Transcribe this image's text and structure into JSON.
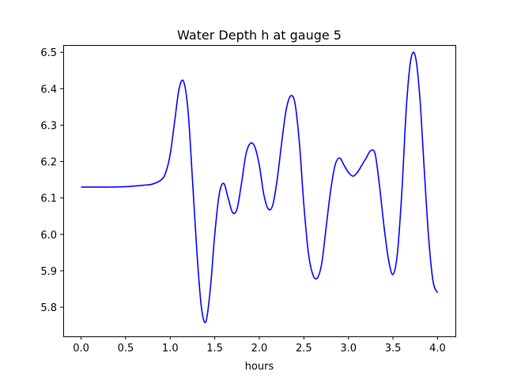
{
  "chart_data": {
    "type": "line",
    "title": "Water Depth h at gauge 5",
    "xlabel": "hours",
    "ylabel": "",
    "xlim": [
      -0.2,
      4.2
    ],
    "ylim": [
      5.72,
      6.52
    ],
    "xticks": [
      0.0,
      0.5,
      1.0,
      1.5,
      2.0,
      2.5,
      3.0,
      3.5,
      4.0
    ],
    "xtick_labels": [
      "0.0",
      "0.5",
      "1.0",
      "1.5",
      "2.0",
      "2.5",
      "3.0",
      "3.5",
      "4.0"
    ],
    "yticks": [
      5.8,
      5.9,
      6.0,
      6.1,
      6.2,
      6.3,
      6.4,
      6.5
    ],
    "ytick_labels": [
      "5.8",
      "5.9",
      "6.0",
      "6.1",
      "6.2",
      "6.3",
      "6.4",
      "6.5"
    ],
    "grid": false,
    "series": [
      {
        "color": "#0000ff",
        "x": [
          0.0,
          0.3,
          0.5,
          0.7,
          0.8,
          0.9,
          0.95,
          1.0,
          1.05,
          1.1,
          1.15,
          1.2,
          1.25,
          1.3,
          1.35,
          1.4,
          1.45,
          1.5,
          1.55,
          1.6,
          1.65,
          1.7,
          1.75,
          1.8,
          1.85,
          1.9,
          1.95,
          2.0,
          2.05,
          2.1,
          2.15,
          2.2,
          2.25,
          2.3,
          2.35,
          2.4,
          2.45,
          2.5,
          2.55,
          2.6,
          2.65,
          2.7,
          2.75,
          2.8,
          2.85,
          2.9,
          2.95,
          3.0,
          3.05,
          3.1,
          3.15,
          3.2,
          3.25,
          3.3,
          3.35,
          3.4,
          3.45,
          3.5,
          3.55,
          3.6,
          3.65,
          3.7,
          3.75,
          3.8,
          3.85,
          3.9,
          3.95,
          4.0
        ],
        "y": [
          6.13,
          6.13,
          6.131,
          6.135,
          6.138,
          6.15,
          6.17,
          6.22,
          6.31,
          6.4,
          6.42,
          6.34,
          6.15,
          5.95,
          5.8,
          5.76,
          5.85,
          6.0,
          6.11,
          6.14,
          6.1,
          6.06,
          6.07,
          6.14,
          6.22,
          6.25,
          6.24,
          6.19,
          6.11,
          6.07,
          6.08,
          6.15,
          6.25,
          6.34,
          6.38,
          6.36,
          6.25,
          6.08,
          5.95,
          5.89,
          5.88,
          5.92,
          6.02,
          6.12,
          6.19,
          6.21,
          6.19,
          6.17,
          6.16,
          6.17,
          6.19,
          6.21,
          6.23,
          6.22,
          6.13,
          6.02,
          5.93,
          5.89,
          5.95,
          6.12,
          6.35,
          6.48,
          6.49,
          6.38,
          6.18,
          5.99,
          5.87,
          5.84
        ]
      }
    ]
  }
}
